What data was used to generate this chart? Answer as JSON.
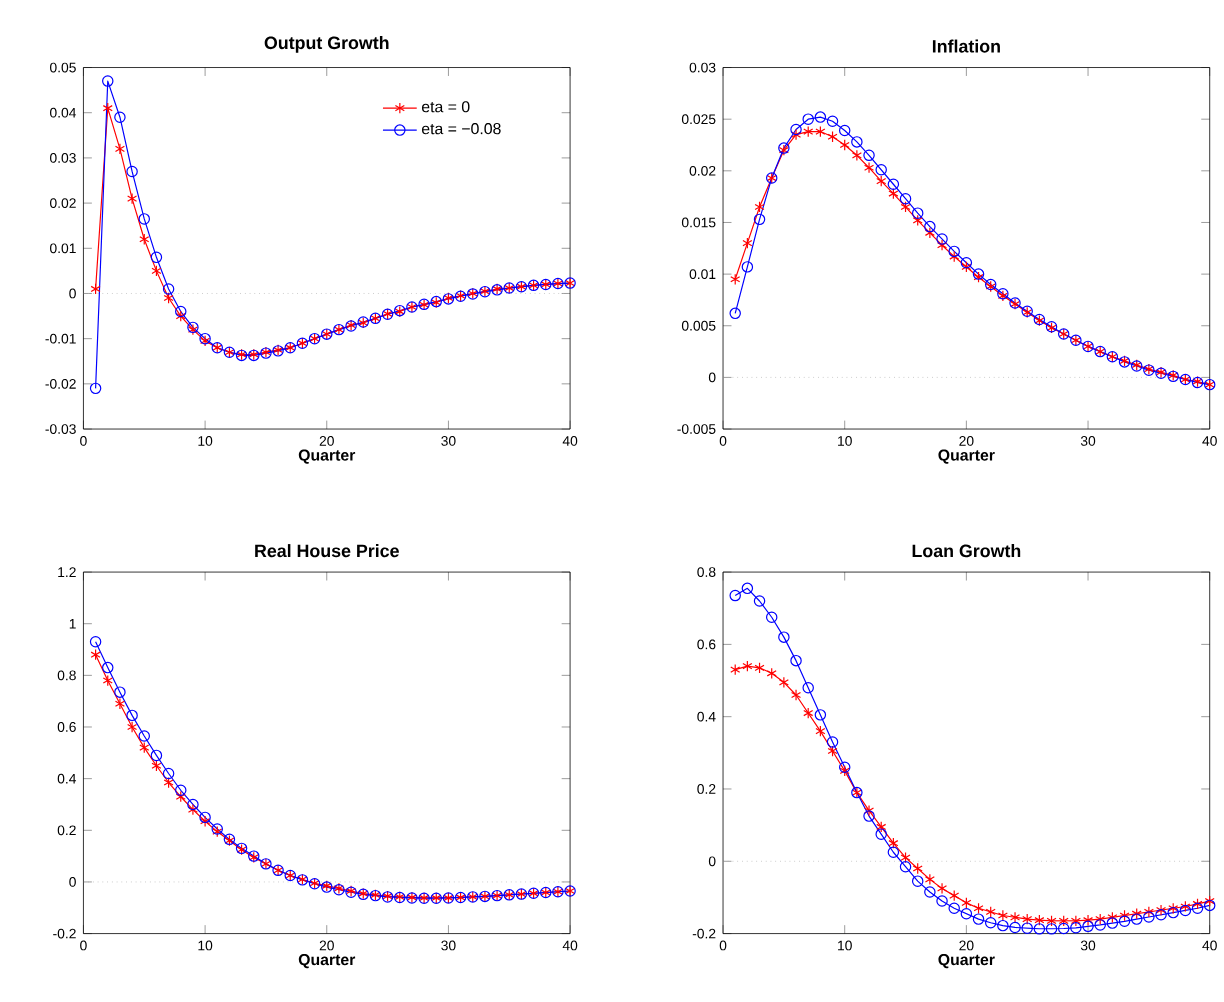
{
  "chart_data": [
    {
      "type": "line",
      "title": "Output Growth",
      "xlabel": "Quarter",
      "x": [
        1,
        2,
        3,
        4,
        5,
        6,
        7,
        8,
        9,
        10,
        11,
        12,
        13,
        14,
        15,
        16,
        17,
        18,
        19,
        20,
        21,
        22,
        23,
        24,
        25,
        26,
        27,
        28,
        29,
        30,
        31,
        32,
        33,
        34,
        35,
        36,
        37,
        38,
        39,
        40
      ],
      "xlim": [
        0,
        40
      ],
      "xticks": [
        0,
        10,
        20,
        30,
        40
      ],
      "ylim": [
        -0.03,
        0.05
      ],
      "yticks": [
        -0.03,
        -0.02,
        -0.01,
        0,
        0.01,
        0.02,
        0.03,
        0.04,
        0.05
      ],
      "legend": "top right",
      "grid": false,
      "ref_lines": [
        {
          "axis": "y",
          "value": 0,
          "color": "#b0b0b0",
          "line_style": "dotted"
        }
      ],
      "series": [
        {
          "name": "eta = 0",
          "color": "#ff0000",
          "marker": "cross",
          "values": [
            0.001,
            0.041,
            0.032,
            0.021,
            0.012,
            0.005,
            -0.001,
            -0.005,
            -0.008,
            -0.0105,
            -0.012,
            -0.013,
            -0.0135,
            -0.0135,
            -0.013,
            -0.0125,
            -0.012,
            -0.011,
            -0.01,
            -0.009,
            -0.008,
            -0.007,
            -0.0065,
            -0.0055,
            -0.0045,
            -0.004,
            -0.003,
            -0.0025,
            -0.002,
            -0.001,
            -0.0005,
            0,
            0.0005,
            0.001,
            0.0012,
            0.0015,
            0.0018,
            0.002,
            0.0022,
            0.0023
          ]
        },
        {
          "name": "eta = −0.08",
          "color": "#0000ff",
          "marker": "circle",
          "values": [
            -0.021,
            0.047,
            0.039,
            0.027,
            0.0165,
            0.008,
            0.001,
            -0.004,
            -0.0075,
            -0.01,
            -0.012,
            -0.013,
            -0.0137,
            -0.0137,
            -0.0132,
            -0.0127,
            -0.012,
            -0.011,
            -0.01,
            -0.009,
            -0.008,
            -0.0072,
            -0.0063,
            -0.0055,
            -0.0046,
            -0.0038,
            -0.003,
            -0.0024,
            -0.0018,
            -0.0012,
            -0.0006,
            -0.0001,
            0.0004,
            0.0008,
            0.0012,
            0.0015,
            0.0018,
            0.002,
            0.0022,
            0.0023
          ]
        }
      ]
    },
    {
      "type": "line",
      "title": "Inflation",
      "xlabel": "Quarter",
      "x": [
        1,
        2,
        3,
        4,
        5,
        6,
        7,
        8,
        9,
        10,
        11,
        12,
        13,
        14,
        15,
        16,
        17,
        18,
        19,
        20,
        21,
        22,
        23,
        24,
        25,
        26,
        27,
        28,
        29,
        30,
        31,
        32,
        33,
        34,
        35,
        36,
        37,
        38,
        39,
        40
      ],
      "xlim": [
        0,
        40
      ],
      "xticks": [
        0,
        10,
        20,
        30,
        40
      ],
      "ylim": [
        -0.005,
        0.03
      ],
      "yticks": [
        -0.005,
        0,
        0.005,
        0.01,
        0.015,
        0.02,
        0.025,
        0.03
      ],
      "grid": false,
      "ref_lines": [
        {
          "axis": "y",
          "value": 0,
          "color": "#b0b0b0",
          "line_style": "dotted"
        }
      ],
      "series": [
        {
          "color": "#ff0000",
          "marker": "cross",
          "values": [
            0.0095,
            0.013,
            0.0165,
            0.0193,
            0.022,
            0.0235,
            0.0238,
            0.0238,
            0.0233,
            0.0225,
            0.0215,
            0.0203,
            0.019,
            0.0178,
            0.0165,
            0.0152,
            0.014,
            0.0128,
            0.0117,
            0.0107,
            0.0097,
            0.0088,
            0.0079,
            0.0071,
            0.0063,
            0.0055,
            0.0048,
            0.0042,
            0.0036,
            0.003,
            0.0025,
            0.002,
            0.0016,
            0.0012,
            0.0008,
            0.0005,
            0.0002,
            -0.0002,
            -0.0004,
            -0.0007
          ]
        },
        {
          "color": "#0000ff",
          "marker": "circle",
          "values": [
            0.0062,
            0.0107,
            0.0153,
            0.0193,
            0.0222,
            0.024,
            0.025,
            0.0252,
            0.0248,
            0.0239,
            0.0228,
            0.0215,
            0.0201,
            0.0187,
            0.0173,
            0.0159,
            0.0146,
            0.0134,
            0.0122,
            0.0111,
            0.01,
            0.009,
            0.0081,
            0.0072,
            0.0064,
            0.0056,
            0.0049,
            0.0042,
            0.0036,
            0.003,
            0.0025,
            0.002,
            0.0015,
            0.0011,
            0.0007,
            0.0004,
            0.0001,
            -0.0002,
            -0.0005,
            -0.0007
          ]
        }
      ]
    },
    {
      "type": "line",
      "title": "Real House Price",
      "xlabel": "Quarter",
      "x": [
        1,
        2,
        3,
        4,
        5,
        6,
        7,
        8,
        9,
        10,
        11,
        12,
        13,
        14,
        15,
        16,
        17,
        18,
        19,
        20,
        21,
        22,
        23,
        24,
        25,
        26,
        27,
        28,
        29,
        30,
        31,
        32,
        33,
        34,
        35,
        36,
        37,
        38,
        39,
        40
      ],
      "xlim": [
        0,
        40
      ],
      "xticks": [
        0,
        10,
        20,
        30,
        40
      ],
      "ylim": [
        -0.2,
        1.2
      ],
      "yticks": [
        -0.2,
        0,
        0.2,
        0.4,
        0.6,
        0.8,
        1,
        1.2
      ],
      "grid": false,
      "ref_lines": [
        {
          "axis": "y",
          "value": 0,
          "color": "#b0b0b0",
          "line_style": "dotted"
        }
      ],
      "series": [
        {
          "color": "#ff0000",
          "marker": "cross",
          "values": [
            0.88,
            0.78,
            0.69,
            0.6,
            0.52,
            0.45,
            0.385,
            0.33,
            0.28,
            0.235,
            0.195,
            0.16,
            0.125,
            0.095,
            0.07,
            0.045,
            0.025,
            0.01,
            -0.005,
            -0.015,
            -0.025,
            -0.035,
            -0.045,
            -0.05,
            -0.055,
            -0.058,
            -0.06,
            -0.062,
            -0.062,
            -0.062,
            -0.06,
            -0.058,
            -0.056,
            -0.053,
            -0.05,
            -0.047,
            -0.044,
            -0.041,
            -0.038,
            -0.035
          ]
        },
        {
          "color": "#0000ff",
          "marker": "circle",
          "values": [
            0.93,
            0.83,
            0.735,
            0.645,
            0.565,
            0.49,
            0.42,
            0.355,
            0.3,
            0.25,
            0.205,
            0.165,
            0.13,
            0.1,
            0.07,
            0.045,
            0.025,
            0.008,
            -0.007,
            -0.02,
            -0.03,
            -0.04,
            -0.048,
            -0.053,
            -0.058,
            -0.06,
            -0.062,
            -0.063,
            -0.063,
            -0.062,
            -0.06,
            -0.058,
            -0.056,
            -0.053,
            -0.05,
            -0.047,
            -0.044,
            -0.041,
            -0.038,
            -0.035
          ]
        }
      ]
    },
    {
      "type": "line",
      "title": "Loan Growth",
      "xlabel": "Quarter",
      "x": [
        1,
        2,
        3,
        4,
        5,
        6,
        7,
        8,
        9,
        10,
        11,
        12,
        13,
        14,
        15,
        16,
        17,
        18,
        19,
        20,
        21,
        22,
        23,
        24,
        25,
        26,
        27,
        28,
        29,
        30,
        31,
        32,
        33,
        34,
        35,
        36,
        37,
        38,
        39,
        40
      ],
      "xlim": [
        0,
        40
      ],
      "xticks": [
        0,
        10,
        20,
        30,
        40
      ],
      "ylim": [
        -0.2,
        0.8
      ],
      "yticks": [
        -0.2,
        0,
        0.2,
        0.4,
        0.6,
        0.8
      ],
      "grid": false,
      "ref_lines": [
        {
          "axis": "y",
          "value": 0,
          "color": "#b0b0b0",
          "line_style": "dotted"
        }
      ],
      "series": [
        {
          "color": "#ff0000",
          "marker": "cross",
          "values": [
            0.53,
            0.54,
            0.535,
            0.52,
            0.495,
            0.46,
            0.41,
            0.36,
            0.305,
            0.25,
            0.19,
            0.14,
            0.095,
            0.05,
            0.01,
            -0.02,
            -0.05,
            -0.075,
            -0.095,
            -0.115,
            -0.13,
            -0.14,
            -0.15,
            -0.155,
            -0.16,
            -0.163,
            -0.165,
            -0.165,
            -0.165,
            -0.163,
            -0.16,
            -0.155,
            -0.15,
            -0.145,
            -0.14,
            -0.135,
            -0.13,
            -0.125,
            -0.118,
            -0.11
          ]
        },
        {
          "color": "#0000ff",
          "marker": "circle",
          "values": [
            0.735,
            0.755,
            0.72,
            0.675,
            0.62,
            0.555,
            0.48,
            0.405,
            0.33,
            0.26,
            0.19,
            0.125,
            0.075,
            0.025,
            -0.015,
            -0.055,
            -0.085,
            -0.11,
            -0.13,
            -0.145,
            -0.16,
            -0.17,
            -0.178,
            -0.183,
            -0.185,
            -0.187,
            -0.187,
            -0.186,
            -0.184,
            -0.18,
            -0.176,
            -0.171,
            -0.166,
            -0.16,
            -0.154,
            -0.148,
            -0.142,
            -0.136,
            -0.13,
            -0.122
          ]
        }
      ]
    }
  ]
}
